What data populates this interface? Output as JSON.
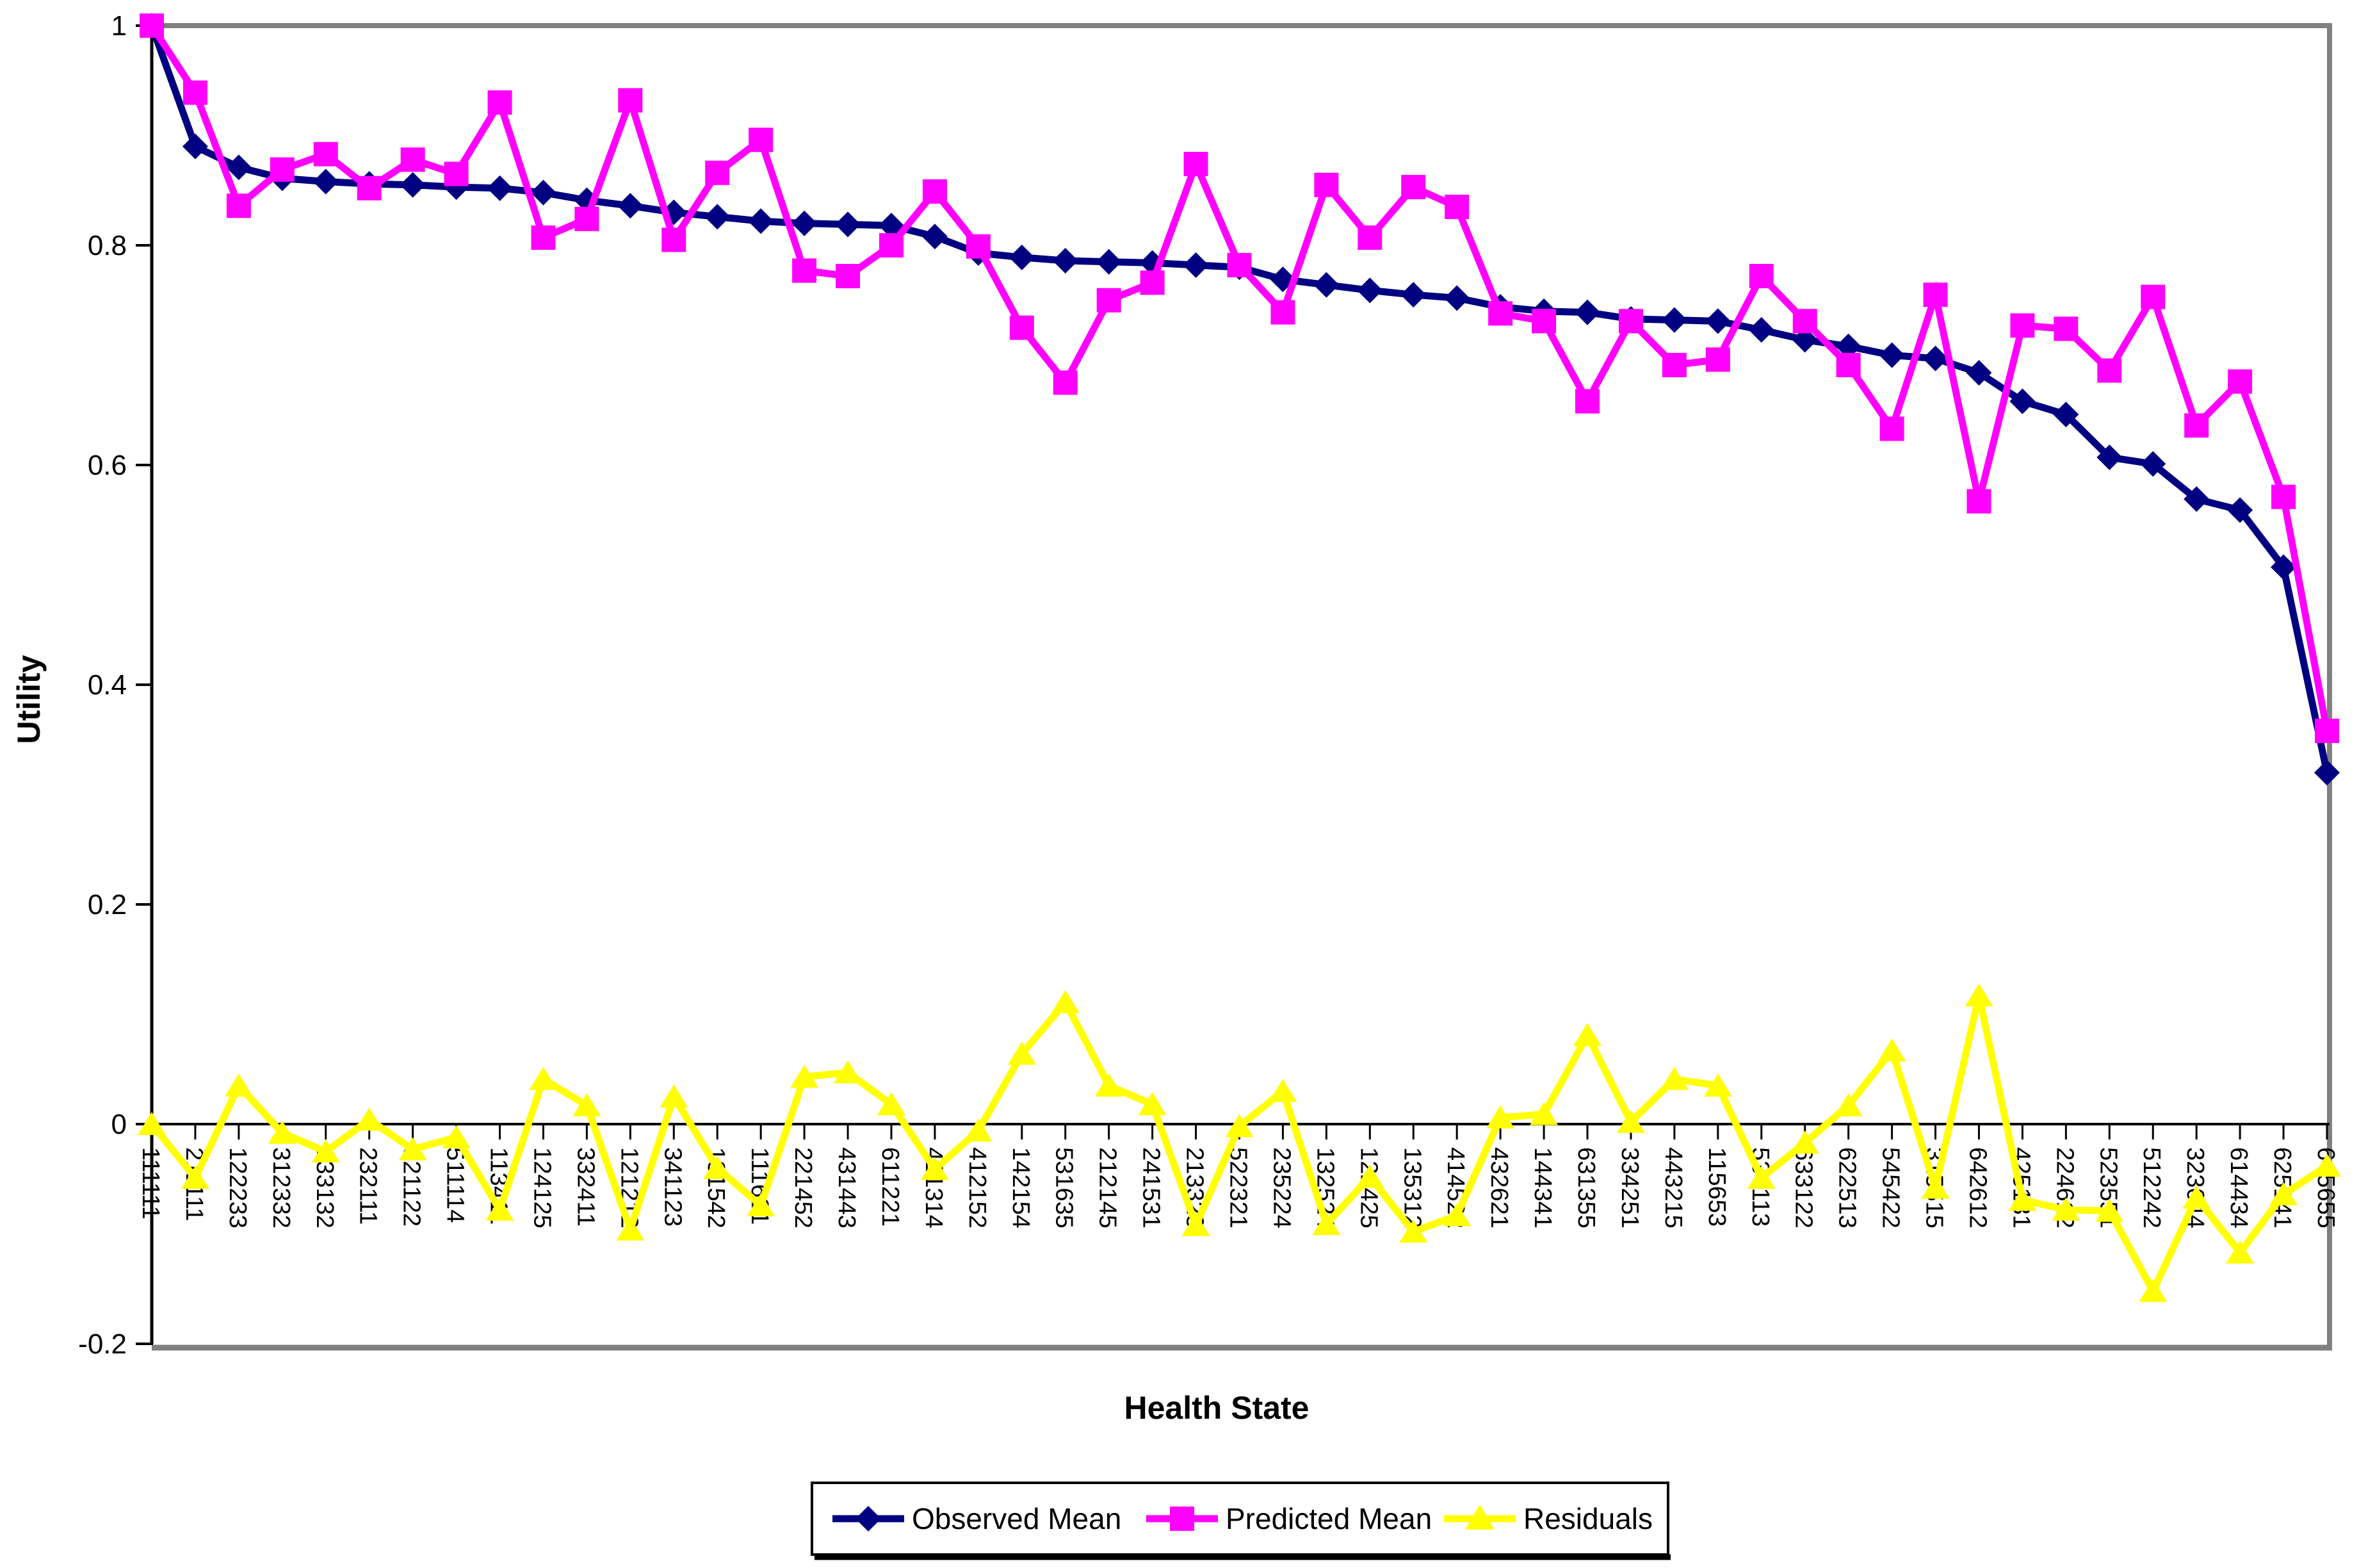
{
  "page": {
    "background": "#FFFFFF"
  },
  "chart_data": {
    "type": "line",
    "title": "",
    "xlabel": "Health State",
    "ylabel": "Utility",
    "ylim": [
      -0.2,
      1.0
    ],
    "yticks": [
      1,
      0.8,
      0.6,
      0.4,
      0.2,
      0,
      -0.2
    ],
    "ytick_labels": [
      "1",
      "0.8",
      "0.6",
      "0.4",
      "0.2",
      "0",
      "-0.2"
    ],
    "grid": false,
    "legend_position": "bottom",
    "categories": [
      "111111",
      "211111",
      "122233",
      "312332",
      "133132",
      "232111",
      "321122",
      "511114",
      "113411",
      "124125",
      "332411",
      "121212",
      "341123",
      "131542",
      "111621",
      "221452",
      "431443",
      "611221",
      "421314",
      "412152",
      "142154",
      "531635",
      "212145",
      "241531",
      "213323",
      "522321",
      "235224",
      "132524",
      "122425",
      "135312",
      "414522",
      "432621",
      "144341",
      "631355",
      "334251",
      "443215",
      "115653",
      "534113",
      "633122",
      "622513",
      "545422",
      "315515",
      "642612",
      "425131",
      "224612",
      "523551",
      "512242",
      "323644",
      "614434",
      "625141",
      "645655"
    ],
    "series": [
      {
        "name": "Observed Mean",
        "color": "#000080",
        "marker": "diamond",
        "values": [
          1.0,
          0.89,
          0.871,
          0.861,
          0.858,
          0.856,
          0.855,
          0.853,
          0.852,
          0.848,
          0.841,
          0.836,
          0.83,
          0.826,
          0.822,
          0.82,
          0.819,
          0.818,
          0.808,
          0.793,
          0.789,
          0.786,
          0.785,
          0.784,
          0.782,
          0.78,
          0.769,
          0.764,
          0.759,
          0.755,
          0.752,
          0.744,
          0.74,
          0.739,
          0.733,
          0.732,
          0.731,
          0.723,
          0.714,
          0.708,
          0.7,
          0.697,
          0.684,
          0.658,
          0.646,
          0.607,
          0.601,
          0.569,
          0.559,
          0.507,
          0.32
        ]
      },
      {
        "name": "Predicted Mean",
        "color": "#FF00FF",
        "marker": "square",
        "values": [
          1.0,
          0.939,
          0.836,
          0.869,
          0.883,
          0.852,
          0.878,
          0.865,
          0.93,
          0.807,
          0.824,
          0.932,
          0.805,
          0.866,
          0.896,
          0.777,
          0.772,
          0.8,
          0.849,
          0.799,
          0.725,
          0.675,
          0.75,
          0.766,
          0.874,
          0.782,
          0.739,
          0.855,
          0.807,
          0.853,
          0.835,
          0.738,
          0.731,
          0.658,
          0.731,
          0.691,
          0.696,
          0.772,
          0.731,
          0.691,
          0.633,
          0.755,
          0.567,
          0.727,
          0.724,
          0.686,
          0.753,
          0.636,
          0.676,
          0.571,
          0.358
        ]
      },
      {
        "name": "Residuals",
        "color": "#FFFF00",
        "marker": "triangle",
        "values": [
          0.0,
          -0.049,
          0.035,
          -0.008,
          -0.025,
          0.004,
          -0.023,
          -0.012,
          -0.078,
          0.041,
          0.017,
          -0.096,
          0.025,
          -0.04,
          -0.074,
          0.043,
          0.047,
          0.018,
          -0.041,
          -0.006,
          0.064,
          0.111,
          0.035,
          0.018,
          -0.092,
          -0.002,
          0.03,
          -0.091,
          -0.048,
          -0.098,
          -0.083,
          0.006,
          0.009,
          0.081,
          0.002,
          0.041,
          0.035,
          -0.049,
          -0.017,
          0.017,
          0.067,
          -0.058,
          0.117,
          -0.069,
          -0.078,
          -0.079,
          -0.152,
          -0.067,
          -0.117,
          -0.064,
          -0.038
        ]
      }
    ],
    "colors": {
      "plot_border": "#808080",
      "axis": "#000000",
      "text": "#000000"
    }
  }
}
